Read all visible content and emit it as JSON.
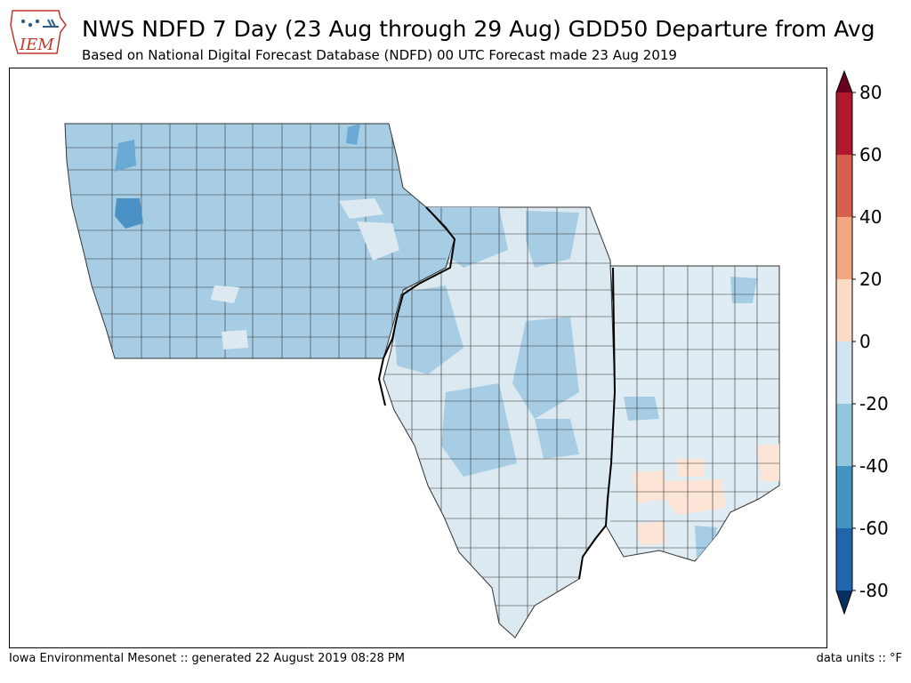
{
  "header": {
    "logo_text": "IEM",
    "title": "NWS NDFD 7 Day (23 Aug through 29 Aug) GDD50 Departure from Avg",
    "subtitle": "Based on National Digital Forecast Database (NDFD) 00 UTC Forecast made 23 Aug 2019"
  },
  "footer": {
    "credit": "Iowa Environmental Mesonet :: generated 22 August 2019 08:28 PM",
    "units": "data units :: °F"
  },
  "legend": {
    "colors": {
      "below_-80": "#053061",
      "-80_-60": "#2166ac",
      "-60_-40": "#4393c3",
      "-40_-20": "#92c5de",
      "-20_0": "#d1e5f0",
      "0_20": "#fddbc7",
      "20_40": "#f4a582",
      "40_60": "#d6604d",
      "60_80": "#b2182b",
      "above_80": "#67001f"
    },
    "ticks": [
      "80",
      "60",
      "40",
      "20",
      "0",
      "-20",
      "-40",
      "-60",
      "-80"
    ]
  },
  "map": {
    "regions": [
      "Iowa",
      "Illinois",
      "Indiana"
    ],
    "dominant_class_by_region": {
      "Iowa": "-40 to -20",
      "Illinois": "-20 to 0",
      "Indiana": "-20 to 0"
    },
    "fill_colors": {
      "iowa": "#a6cde4",
      "illinois": "#dce9f1",
      "indiana": "#dfecf3",
      "cool_patch": "#a6cde4",
      "cold_patch": "#4a92c6",
      "warm_patch": "#fce4d6"
    }
  }
}
